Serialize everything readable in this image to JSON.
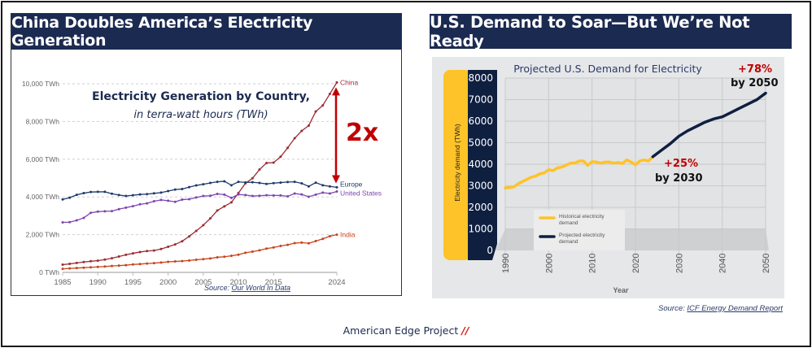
{
  "left_panel": {
    "banner_title": "China Doubles America’s Electricity Generation",
    "source_prefix": "Source: ",
    "source_link": "Our World In Data",
    "annotation_2x": "2x"
  },
  "right_panel": {
    "banner_title": "U.S. Demand to Soar—But We’re Not Ready",
    "source_prefix": "Source: ",
    "source_link": "ICF Energy Demand Report",
    "callout_2030_pct": "+25%",
    "callout_2030_label": "by 2030",
    "callout_2050_pct": "+78%",
    "callout_2050_label": "by 2050"
  },
  "footer": {
    "brand": "American Edge Project",
    "brand_mark": "//"
  },
  "colors": {
    "banner_navy": "#1b2a50",
    "china": "#9b2c33",
    "europe": "#1f3a6b",
    "united_states": "#7e44b0",
    "india": "#c8441a",
    "arrow_red": "#c00000",
    "historical": "#fec328",
    "projected": "#0f1f40"
  },
  "chart_data": [
    {
      "type": "line",
      "title": "Electricity Generation by Country,",
      "subtitle": "in terra-watt hours (TWh)",
      "xlabel": "",
      "ylabel": "",
      "ylim": [
        0,
        10000
      ],
      "xlim": [
        1985,
        2024
      ],
      "yticks": [
        0,
        2000,
        4000,
        6000,
        8000,
        10000
      ],
      "ytick_labels": [
        "0 TWh",
        "2,000 TWh",
        "4,000 TWh",
        "6,000 TWh",
        "8,000 TWh",
        "10,000 TWh"
      ],
      "xticks": [
        1985,
        1990,
        1995,
        2000,
        2005,
        2010,
        2015,
        2024
      ],
      "grid": "horizontal dashed",
      "legend": "end-of-line labels",
      "x": [
        1985,
        1986,
        1987,
        1988,
        1989,
        1990,
        1991,
        1992,
        1993,
        1994,
        1995,
        1996,
        1997,
        1998,
        1999,
        2000,
        2001,
        2002,
        2003,
        2004,
        2005,
        2006,
        2007,
        2008,
        2009,
        2010,
        2011,
        2012,
        2013,
        2014,
        2015,
        2016,
        2017,
        2018,
        2019,
        2020,
        2021,
        2022,
        2023,
        2024
      ],
      "series": [
        {
          "name": "China",
          "values": [
            410,
            450,
            500,
            550,
            590,
            620,
            680,
            750,
            840,
            930,
            1010,
            1080,
            1130,
            1160,
            1240,
            1360,
            1480,
            1650,
            1910,
            2200,
            2500,
            2860,
            3280,
            3500,
            3710,
            4210,
            4720,
            4990,
            5450,
            5800,
            5820,
            6130,
            6600,
            7110,
            7500,
            7780,
            8530,
            8850,
            9460,
            10070
          ]
        },
        {
          "name": "Europe",
          "values": [
            3870,
            3960,
            4110,
            4200,
            4260,
            4270,
            4270,
            4170,
            4100,
            4050,
            4090,
            4130,
            4150,
            4190,
            4230,
            4310,
            4390,
            4420,
            4520,
            4610,
            4670,
            4740,
            4800,
            4830,
            4620,
            4800,
            4770,
            4780,
            4740,
            4690,
            4730,
            4760,
            4790,
            4800,
            4720,
            4560,
            4760,
            4620,
            4560,
            4510
          ]
        },
        {
          "name": "United States",
          "values": [
            2650,
            2660,
            2760,
            2890,
            3160,
            3220,
            3240,
            3250,
            3350,
            3430,
            3510,
            3610,
            3660,
            3770,
            3840,
            3800,
            3740,
            3860,
            3880,
            3970,
            4050,
            4060,
            4160,
            4120,
            3950,
            4130,
            4100,
            4050,
            4060,
            4090,
            4080,
            4080,
            4030,
            4180,
            4130,
            4010,
            4120,
            4230,
            4180,
            4290
          ]
        },
        {
          "name": "India",
          "values": [
            190,
            210,
            230,
            250,
            270,
            290,
            310,
            340,
            360,
            380,
            420,
            440,
            470,
            490,
            520,
            560,
            580,
            600,
            630,
            670,
            700,
            740,
            800,
            830,
            880,
            940,
            1040,
            1100,
            1170,
            1260,
            1320,
            1400,
            1460,
            1550,
            1580,
            1540,
            1660,
            1780,
            1920,
            2000
          ]
        }
      ]
    },
    {
      "type": "line",
      "title": "Projected U.S. Demand for Electricity",
      "xlabel": "Year",
      "ylabel": "Electricity demand (TWh)",
      "ylim": [
        0,
        8000
      ],
      "xlim": [
        1990,
        2050
      ],
      "yticks": [
        0,
        1000,
        2000,
        3000,
        4000,
        5000,
        6000,
        7000,
        8000
      ],
      "xticks": [
        1990,
        2000,
        2010,
        2020,
        2030,
        2040,
        2050
      ],
      "grid": "both",
      "legend": "bottom-left",
      "legend_entries": [
        "Historical electricity demand",
        "Projected electricity demand"
      ],
      "annotations": [
        "+25% by 2030",
        "+78% by 2050"
      ],
      "series": [
        {
          "name": "Historical electricity demand",
          "x": [
            1990,
            1991,
            1992,
            1993,
            1994,
            1995,
            1996,
            1997,
            1998,
            1999,
            2000,
            2001,
            2002,
            2003,
            2004,
            2005,
            2006,
            2007,
            2008,
            2009,
            2010,
            2011,
            2012,
            2013,
            2014,
            2015,
            2016,
            2017,
            2018,
            2019,
            2020,
            2021,
            2022,
            2023,
            2024
          ],
          "values": [
            2900,
            2920,
            2950,
            3100,
            3200,
            3300,
            3400,
            3450,
            3560,
            3600,
            3750,
            3700,
            3830,
            3870,
            3950,
            4050,
            4050,
            4150,
            4150,
            3950,
            4120,
            4100,
            4050,
            4100,
            4100,
            4050,
            4080,
            4030,
            4200,
            4100,
            3970,
            4150,
            4200,
            4150,
            4350
          ]
        },
        {
          "name": "Projected electricity demand",
          "x": [
            2024,
            2026,
            2028,
            2030,
            2032,
            2034,
            2036,
            2038,
            2040,
            2042,
            2044,
            2046,
            2048,
            2050
          ],
          "values": [
            4350,
            4650,
            4950,
            5300,
            5550,
            5750,
            5950,
            6100,
            6200,
            6400,
            6600,
            6800,
            7000,
            7300
          ]
        }
      ]
    }
  ]
}
